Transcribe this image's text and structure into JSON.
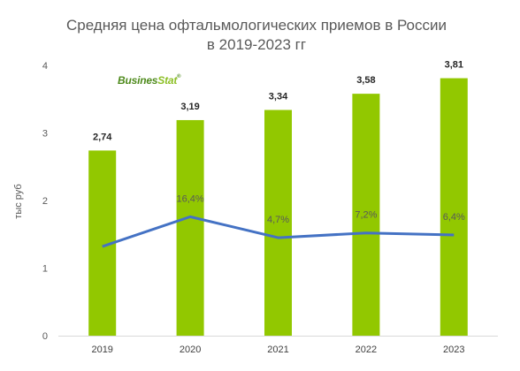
{
  "chart_data": {
    "type": "bar",
    "title_line1": "Средняя цена офтальмологических приемов в России",
    "title_line2": "в 2019-2023 гг",
    "ylabel": "тыс руб",
    "categories": [
      "2019",
      "2020",
      "2021",
      "2022",
      "2023"
    ],
    "values": [
      2.74,
      3.19,
      3.34,
      3.58,
      3.81
    ],
    "value_labels": [
      "2,74",
      "3,19",
      "3,34",
      "3,58",
      "3,81"
    ],
    "ylim": [
      0,
      4
    ],
    "yticks": [
      "0",
      "1",
      "2",
      "3",
      "4"
    ],
    "bar_color": "#92c800",
    "line_series": {
      "values": [
        null,
        16.4,
        4.7,
        7.2,
        6.4
      ],
      "labels": [
        "",
        "16,4%",
        "4,7%",
        "7,2%",
        "6,4%"
      ],
      "color": "#4472c4",
      "plotted_y": [
        1.32,
        1.76,
        1.45,
        1.52,
        1.49
      ]
    },
    "grid": false
  },
  "logo": {
    "part1": "Busines",
    "part2": "Stat",
    "mark": "®"
  }
}
